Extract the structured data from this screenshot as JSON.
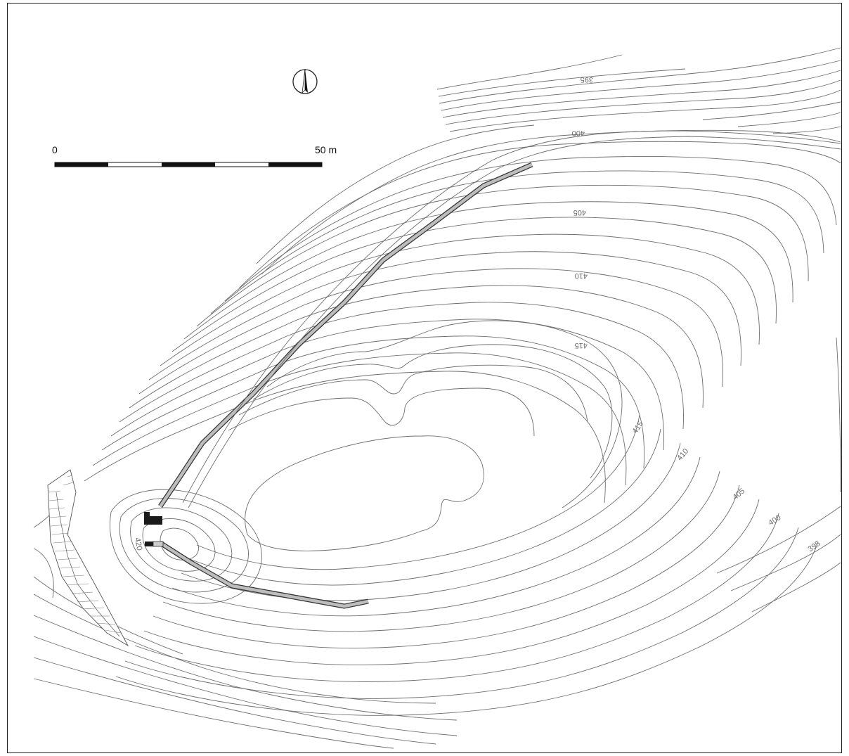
{
  "scale_bar": {
    "start_label": "0",
    "end_label": "50 m",
    "segments": 5
  },
  "north_arrow": {
    "icon": "north-arrow-icon"
  },
  "contour_labels": [
    {
      "id": "395-north",
      "text": "395"
    },
    {
      "id": "400-north",
      "text": "400"
    },
    {
      "id": "405-north",
      "text": "405"
    },
    {
      "id": "410-north",
      "text": "410"
    },
    {
      "id": "415-north",
      "text": "415"
    },
    {
      "id": "415-south",
      "text": "415"
    },
    {
      "id": "410-south",
      "text": "410"
    },
    {
      "id": "405-south",
      "text": "405"
    },
    {
      "id": "400-south",
      "text": "400"
    },
    {
      "id": "395-south",
      "text": "395"
    },
    {
      "id": "420-summit",
      "text": "420"
    }
  ],
  "colors": {
    "contour": "#6d6d6d",
    "trench_outline": "#333333",
    "trench_fill": "#bdbdbd",
    "structure": "#1a1a1a",
    "frame": "#222222"
  }
}
